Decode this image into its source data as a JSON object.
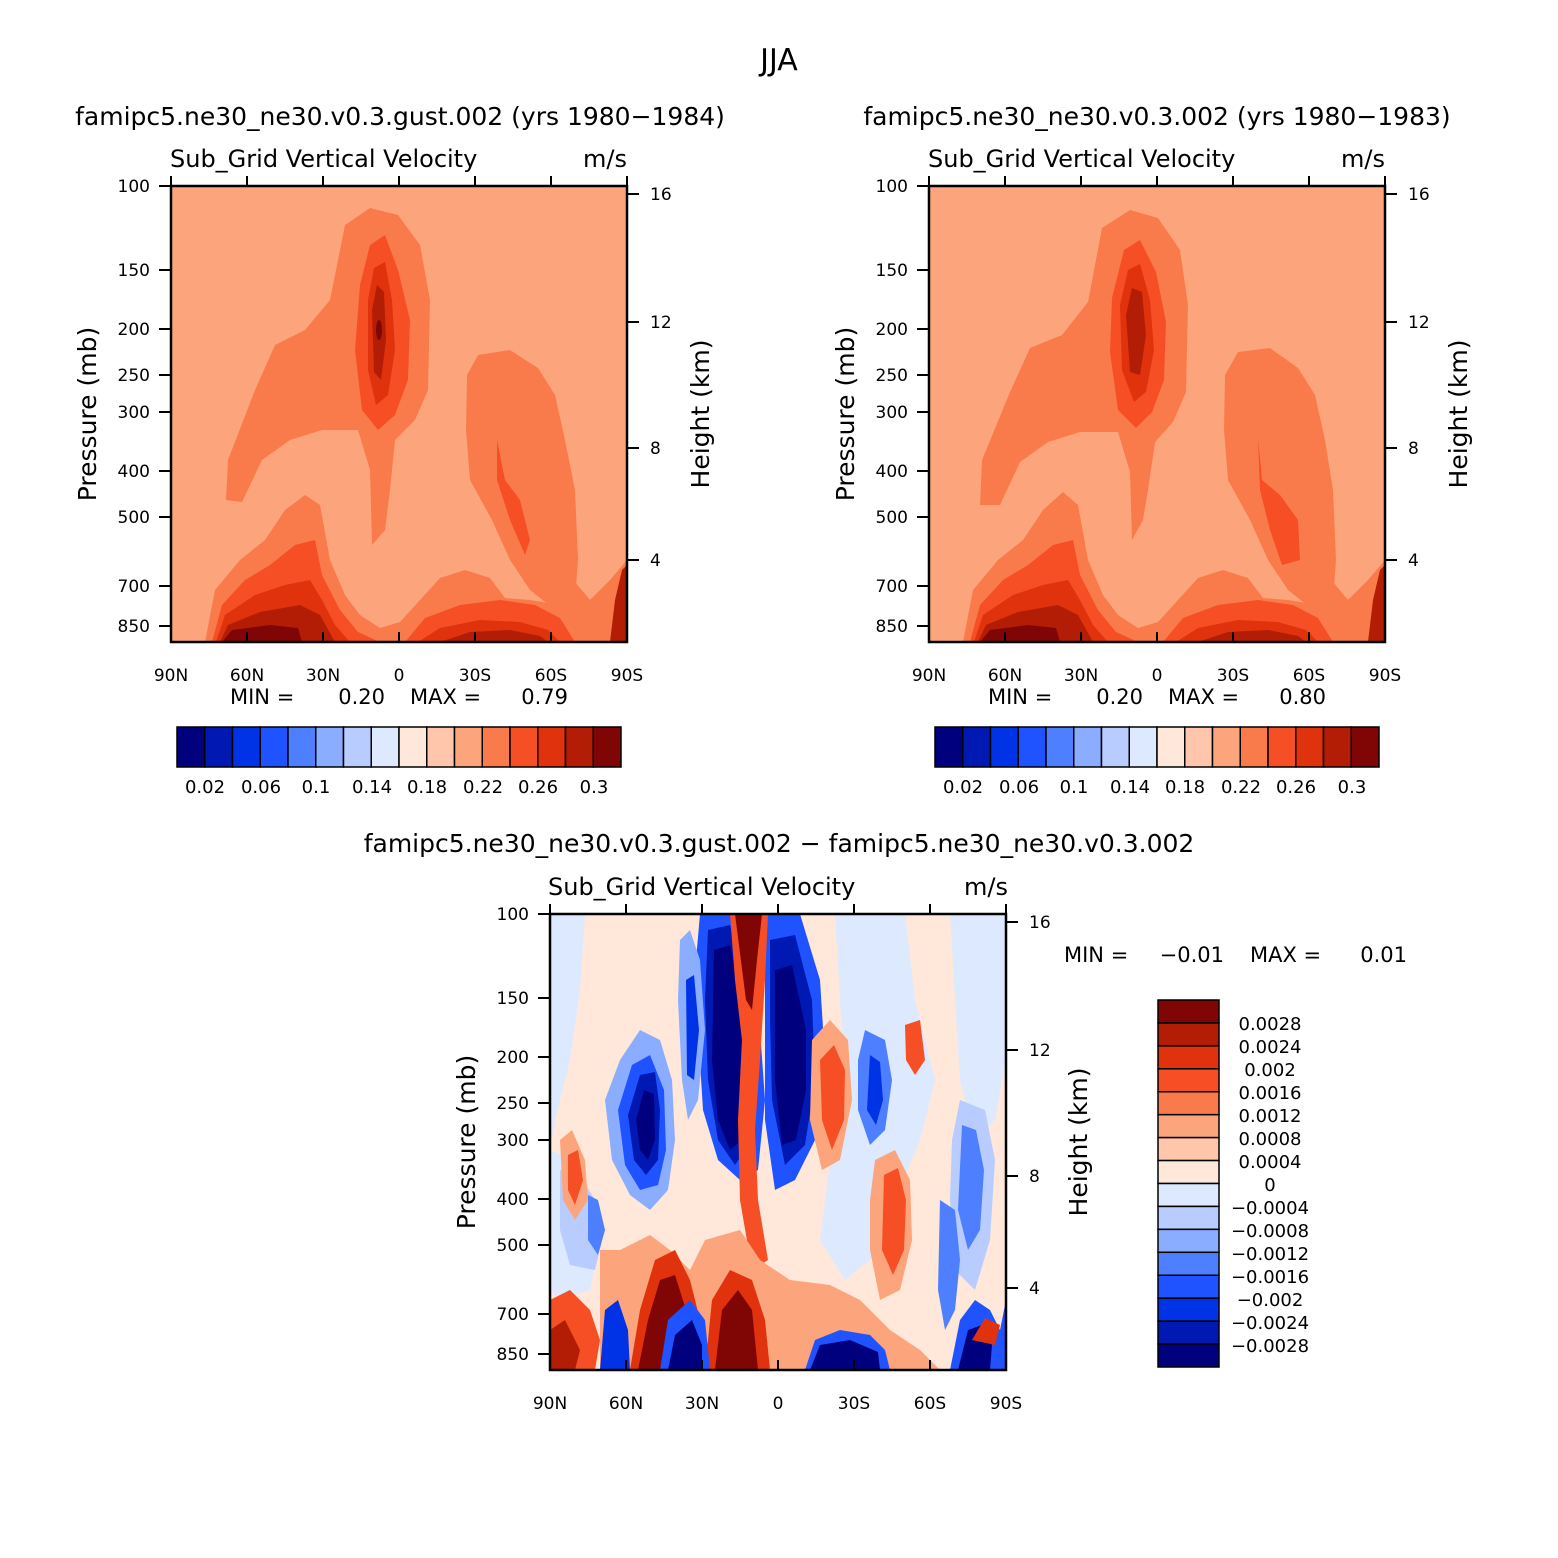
{
  "page_title": "JJA",
  "chart_data": [
    {
      "type": "heatmap",
      "case": "famipc5.ne30_ne30.v0.3.gust.002 (yrs 1980−1984)",
      "variable": "Sub_Grid Vertical Velocity",
      "units": "m/s",
      "ylabel": "Pressure (mb)",
      "ylabel_right": "Height (km)",
      "x_ticks": [
        "90N",
        "60N",
        "30N",
        "0",
        "30S",
        "60S",
        "90S"
      ],
      "x_values": [
        90,
        60,
        30,
        0,
        -30,
        -60,
        -90
      ],
      "y_ticks": [
        "100",
        "150",
        "200",
        "250",
        "300",
        "400",
        "500",
        "700",
        "850"
      ],
      "y_values": [
        100,
        150,
        200,
        250,
        300,
        400,
        500,
        700,
        850
      ],
      "y_range": [
        100,
        1000
      ],
      "height_ticks": [
        "16",
        "12",
        "8",
        "4"
      ],
      "min_label": "MIN =",
      "min_value": "0.20",
      "max_label": "MAX =",
      "max_value": "0.79",
      "colorbar": {
        "orientation": "horizontal",
        "labels": [
          "0.02",
          "0.06",
          "0.1",
          "0.14",
          "0.18",
          "0.22",
          "0.26",
          "0.3"
        ],
        "levels": [
          0.02,
          0.04,
          0.06,
          0.08,
          0.1,
          0.12,
          0.14,
          0.16,
          0.18,
          0.2,
          0.22,
          0.24,
          0.26,
          0.28,
          0.3
        ]
      }
    },
    {
      "type": "heatmap",
      "case": "famipc5.ne30_ne30.v0.3.002 (yrs 1980−1983)",
      "variable": "Sub_Grid Vertical Velocity",
      "units": "m/s",
      "ylabel": "Pressure (mb)",
      "ylabel_right": "Height (km)",
      "x_ticks": [
        "90N",
        "60N",
        "30N",
        "0",
        "30S",
        "60S",
        "90S"
      ],
      "x_values": [
        90,
        60,
        30,
        0,
        -30,
        -60,
        -90
      ],
      "y_ticks": [
        "100",
        "150",
        "200",
        "250",
        "300",
        "400",
        "500",
        "700",
        "850"
      ],
      "y_values": [
        100,
        150,
        200,
        250,
        300,
        400,
        500,
        700,
        850
      ],
      "y_range": [
        100,
        1000
      ],
      "height_ticks": [
        "16",
        "12",
        "8",
        "4"
      ],
      "min_label": "MIN =",
      "min_value": "0.20",
      "max_label": "MAX =",
      "max_value": "0.80",
      "colorbar": {
        "orientation": "horizontal",
        "labels": [
          "0.02",
          "0.06",
          "0.1",
          "0.14",
          "0.18",
          "0.22",
          "0.26",
          "0.3"
        ],
        "levels": [
          0.02,
          0.04,
          0.06,
          0.08,
          0.1,
          0.12,
          0.14,
          0.16,
          0.18,
          0.2,
          0.22,
          0.24,
          0.26,
          0.28,
          0.3
        ]
      }
    },
    {
      "type": "heatmap",
      "case": "famipc5.ne30_ne30.v0.3.gust.002 − famipc5.ne30_ne30.v0.3.002",
      "variable": "Sub_Grid Vertical Velocity",
      "units": "m/s",
      "ylabel": "Pressure (mb)",
      "ylabel_right": "Height (km)",
      "x_ticks": [
        "90N",
        "60N",
        "30N",
        "0",
        "30S",
        "60S",
        "90S"
      ],
      "x_values": [
        90,
        60,
        30,
        0,
        -30,
        -60,
        -90
      ],
      "y_ticks": [
        "100",
        "150",
        "200",
        "250",
        "300",
        "400",
        "500",
        "700",
        "850"
      ],
      "y_values": [
        100,
        150,
        200,
        250,
        300,
        400,
        500,
        700,
        850
      ],
      "y_range": [
        100,
        1000
      ],
      "height_ticks": [
        "16",
        "12",
        "8",
        "4"
      ],
      "min_label": "MIN =",
      "min_value": "−0.01",
      "max_label": "MAX =",
      "max_value": "0.01",
      "colorbar": {
        "orientation": "vertical",
        "labels": [
          "0.0028",
          "0.0024",
          "0.002",
          "0.0016",
          "0.0012",
          "0.0008",
          "0.0004",
          "0",
          "−0.0004",
          "−0.0008",
          "−0.0012",
          "−0.0016",
          "−0.002",
          "−0.0024",
          "−0.0028"
        ],
        "levels": [
          0.0028,
          0.0024,
          0.002,
          0.0016,
          0.0012,
          0.0008,
          0.0004,
          0,
          -0.0004,
          -0.0008,
          -0.0012,
          -0.0016,
          -0.002,
          -0.0024,
          -0.0028
        ]
      }
    }
  ],
  "palette": [
    "#00007f",
    "#0019b3",
    "#0033e6",
    "#1f53ff",
    "#4d7fff",
    "#8aadff",
    "#b8ccff",
    "#dce9ff",
    "#ffe8d9",
    "#ffc6ac",
    "#fca57d",
    "#f97b4b",
    "#f64f25",
    "#e0320d",
    "#b31d06",
    "#800606"
  ]
}
